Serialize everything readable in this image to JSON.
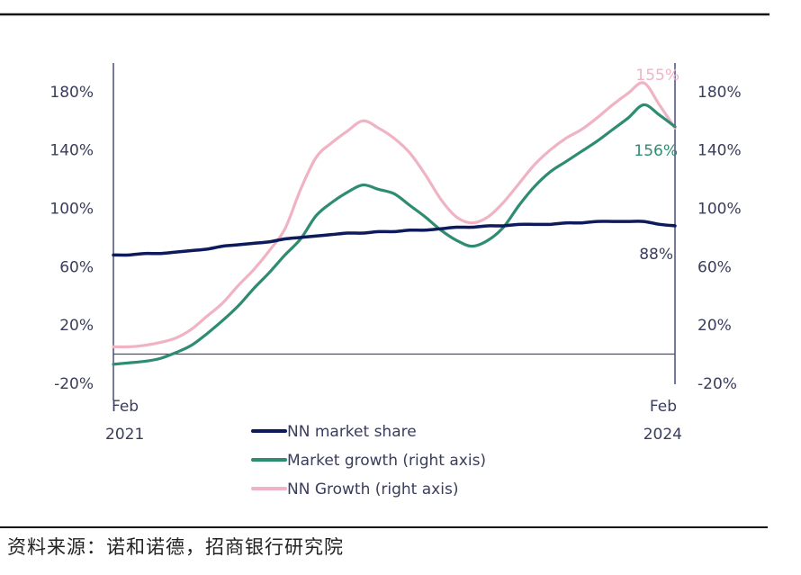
{
  "chart_data": {
    "type": "line",
    "title": "",
    "xlabel": "",
    "ylabel": "",
    "x_tick_labels": [
      {
        "month_index": 0,
        "lines": [
          "Feb",
          "2021"
        ]
      },
      {
        "month_index": 36,
        "lines": [
          "Feb",
          "2024"
        ]
      }
    ],
    "x_start": "Feb 2021",
    "x_end": "Feb 2024",
    "y_left": {
      "ticks": [
        180,
        140,
        100,
        60,
        20,
        -20
      ],
      "tick_labels": [
        "180%",
        "140%",
        "100%",
        "60%",
        "20%",
        "-20%"
      ],
      "ylim": [
        -20,
        200
      ]
    },
    "y_right": {
      "ticks": [
        180,
        140,
        100,
        60,
        20,
        -20
      ],
      "tick_labels": [
        "180%",
        "140%",
        "100%",
        "60%",
        "20%",
        "-20%"
      ],
      "ylim": [
        -20,
        200
      ]
    },
    "grid": false,
    "legend_position": "bottom-center",
    "series": [
      {
        "name": "NN market share",
        "axis": "left",
        "color": "#0d1a5c",
        "end_label": "88%",
        "values": [
          68,
          68,
          69,
          69,
          70,
          71,
          72,
          74,
          75,
          76,
          77,
          79,
          80,
          81,
          82,
          83,
          83,
          84,
          84,
          85,
          85,
          86,
          87,
          87,
          88,
          88,
          89,
          89,
          89,
          90,
          90,
          91,
          91,
          91,
          91,
          89,
          88
        ]
      },
      {
        "name": "Market growth (right axis)",
        "axis": "right",
        "color": "#2e8c72",
        "end_label": "156%",
        "values": [
          -7,
          -6,
          -5,
          -3,
          1,
          6,
          14,
          23,
          33,
          45,
          56,
          68,
          79,
          95,
          104,
          111,
          116,
          113,
          110,
          102,
          94,
          85,
          78,
          74,
          78,
          87,
          102,
          115,
          125,
          132,
          139,
          146,
          154,
          162,
          171,
          164,
          156
        ]
      },
      {
        "name": "NN Growth (right axis)",
        "axis": "right",
        "color": "#f0b3c4",
        "end_label": "155%",
        "values": [
          5,
          5,
          6,
          8,
          11,
          17,
          26,
          35,
          47,
          58,
          71,
          86,
          113,
          135,
          145,
          153,
          160,
          155,
          148,
          138,
          123,
          106,
          94,
          90,
          94,
          104,
          117,
          130,
          140,
          148,
          154,
          162,
          171,
          179,
          186,
          171,
          155
        ]
      }
    ]
  },
  "source_note": "资料来源：诺和诺德，招商银行研究院",
  "colors": {
    "axis": "#4a4e7a",
    "rule": "#111111",
    "text": "#3a3d5c"
  }
}
